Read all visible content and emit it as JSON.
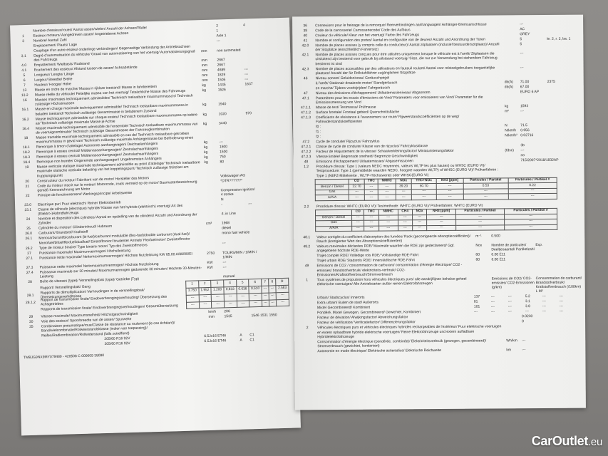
{
  "left_page": {
    "rows": [
      [
        "",
        "Nombre d'essieux/roues/ Aantal assen/wielen/ Anzahl der Achsen/Räder",
        "",
        "2",
        "4"
      ],
      [
        "1",
        "Essieux moteurs/ Aangedreven assen/ Angetriebene Achsen",
        "",
        "1",
        ""
      ],
      [
        "3",
        "Nombre/ Aantal/ Zahl",
        "",
        "Axle 1",
        ""
      ],
      [
        "",
        "Emplacement/ Plaats/ Lage",
        "",
        "---",
        ""
      ],
      [
        "",
        "Couplage d'un autre essieu/ onderlinge verbindingen/ Gegenseitige Verbindung der Antriebsachsen",
        "",
        "",
        ""
      ],
      [
        "3.1",
        "Degré d'automatisation du véhicule/ Graad van automatisering van het voertuig/ Automatisierungsgrad des Fahrzeugs",
        "mm",
        "non automated",
        ""
      ],
      [
        "4.0",
        "Empattement/ Wielbasis/ Radstand",
        "mm",
        "2667",
        ""
      ],
      [
        "4.1",
        "Ecartement des essieux/ Afstand tussen de assen/ Achsabstände",
        "mm",
        "2667",
        ""
      ],
      [
        "5",
        "Longueur/ Lengte/ Länge",
        "mm",
        "4689",
        "---"
      ],
      [
        "6",
        "Largeur/ Breedte/ Breite",
        "mm",
        "1829",
        "---"
      ],
      [
        "7",
        "Hauteur/ Hoogte/ Höhe",
        "mm",
        "1505",
        "---"
      ],
      [
        "13",
        "Masse en ordre de marche/ Massa in rijklare toestand/ Masse in fahrbereitem",
        "kg",
        "1435",
        "1637"
      ],
      [
        "13.2",
        "Masse réelle du véhicule/ Feitelijke massa van het voertuig/ Tatsächliche Masse des Fahrzeugs",
        "kg",
        "1526",
        ""
      ],
      [
        "16",
        "Masses maximales techniquement admissibles/ Technisch toelaatbare maximummassa's/ Technisch zulässige Höchstmassen",
        "",
        "",
        ""
      ],
      [
        "16.1",
        "Masse en charge maximale techniquement admissible/ Technisch toelaatbare maximummassa in beladen toestand/ Technisch zulässige Gesamtmasse in beladenem Zustand",
        "kg",
        "1940",
        ""
      ],
      [
        "16.2",
        "Masse techniquement admissible sur chaque essieu/ Technisch toelaatbare maximummassa op iedere as/ Technisch zulässige maximale Masse je Achse",
        "kg",
        "1020",
        "970"
      ],
      [
        "16.4",
        "Masse maximale techniquement admissible de l'ensemble/ Technisch toelaatbare maximummassa van de voertuigcombinatie/ Technisch zulässige Gesamtmasse der Fahrzeugkombination",
        "kg",
        "3440",
        ""
      ],
      [
        "18",
        "Masse tractable maximale techniquement admissible en cas de/ Technisch toelaatbare getrokken maximummassa in geval van/ Technisch zulässige maximale Anhängemasse bei Beförderung eines",
        "",
        "",
        ""
      ],
      [
        "18.1",
        "Remorque à timon d'attelage/ Autonome aanhangwagen/ Deichselanhängers",
        "kg",
        "---",
        ""
      ],
      [
        "18.2",
        "Remorque à essieu central/ Middenasaanhangwagen/ Zentralachsanhängers",
        "kg",
        "1500",
        ""
      ],
      [
        "18.3",
        "Remorque à essieu central/ Middenasaanhangwagen/ Zentralachsanhängers",
        "kg",
        "1500",
        ""
      ],
      [
        "18.4",
        "Remorque non freinée/ Ongeremde aanhangwagen/ Ungebremsten Anhängers",
        "kg",
        "750",
        ""
      ],
      [
        "19",
        "Masse verticale statique maximale techniquement admissible au point d'attelage/ Technisch toelaatbare maximale statische verticale belasting van het koppelingspunt/ Technisch zulässige Stützlast am Kupplungspunkt",
        "kg",
        "80",
        ""
      ],
      [
        "20",
        "Constructeur du moteur/ Fabrikant van de motor/ Hersteller des Motors",
        "",
        "Volkswagen AG",
        ""
      ],
      [
        "21",
        "Code du moteur inscrit sur le moteur/ Motorcode, zoals vermeld op de motor/ Baumusterbezeichnung gemäß Kennzeichnung am Motor",
        "",
        "*DTR??????*",
        ""
      ],
      [
        "22",
        "Principe de fonctionnement/ Werkingsprincipe/ Arbeitsweise",
        "",
        "Compression ignition/ 4 stroke",
        ""
      ],
      [
        "23.0",
        "Electrique pur/ Puur elektrisch/ Reiner Elektrobetrieb",
        "",
        "N",
        ""
      ],
      [
        "23.1",
        "Classe de véhicule (électrique) hybride/ Klasse van het hybride (elektrisch) voertuig/ Art des (Elektro-)Hybridfahrzeugs",
        "",
        "-",
        "---"
      ],
      [
        "24",
        "Nombre et disposition des cylindres/ Aantal en opstelling van de cilinders/ Anzahl und Anordnung der Zylinder",
        "",
        "4; in Line",
        ""
      ],
      [
        "25",
        "Cylindrée du moteur/ Cilinderinhoud/ Hubraum",
        "cm³",
        "1968",
        ""
      ],
      [
        "26.0",
        "Carburant/ Brandstof/ Kraftstoff",
        "",
        "diesel",
        ""
      ],
      [
        "26.1",
        "Monocarburant/bicarburant (bi-fuel)/carburant modulable (flex-fuel)/double carburant (dual-fuel)/ Monofuel/bifuel/flexfuel/dualfuel/ Einstoffmotor/ bivalenter Antrieb/ Flexfuelmotor/ Zweistoffmotor",
        "",
        "mono fuel vehicle",
        ""
      ],
      [
        "26.2",
        "Type de moteur binaire/ Type binaire motor/ Typ des Zweistoffmotors",
        "",
        "---",
        ""
      ],
      [
        "27",
        "Puissance maximale/ Maximumvermogen/ Höchstleistung",
        "",
        "",
        ""
      ],
      [
        "27.1",
        "Puissance nette maximale/ Nettomaximumvermogen/ Höchste Nutzleistung KW 85.00 A/88/99/EI",
        "2750",
        "TOURS/MIN / 1/MIN / 1/MIN",
        ""
      ],
      [
        "27.3",
        "Puissance nette maximale/ Nettomaximumvermogen/ Höchste Nutzleistung",
        "KW",
        "---",
        ""
      ],
      [
        "27.4",
        "Puissance maximale sur 30 minutes/ Maximumvermogen gedurende 30 minuten/ Höchste 30-Minuten-Leistung",
        "KW",
        "---",
        ""
      ],
      [
        "28",
        "Boîte de vitesses (type)/ Versnellingsbak (type)/ Getriebe (Typ)",
        "",
        "manual",
        ""
      ]
    ],
    "gearbox": {
      "rows_labels": [
        [
          "",
          "Rapport/ Versnellingsbak/ Gang"
        ],
        [
          "28.1",
          "Rapports de démultiplication/ Verhoudingen in de versnellingsbak/ Übersetzungsverhältnisse"
        ],
        [
          "28.1.2",
          "Rapport de transmission finale/ Eindoverbrengingsverhouding/ Übersetzung des Achsgetriebes"
        ],
        [
          "",
          "Rapports de transmission finale/ Eindoverbrengingsverhoudingen/ Gesamtübersetzung"
        ]
      ],
      "gears": [
        "1",
        "2",
        "3",
        "4",
        "5",
        "6",
        "7",
        "8",
        "R"
      ],
      "ratios": [
        "3.750",
        "1.952",
        "1.200",
        "0.833",
        "0.638",
        "0.510",
        "---",
        "---",
        "2.583"
      ],
      "final": [
        "---",
        "---",
        "---",
        "---",
        "---",
        "---",
        "---",
        "---",
        "---"
      ],
      "overall": [
        "---",
        "---",
        "---",
        "---",
        "---",
        "---",
        "---",
        "---",
        "---"
      ]
    },
    "rows2": [
      [
        "29",
        "Vitesse maximale/ Maximumsnelheid/ Höchstgeschwindigkeit",
        "km/h",
        "206",
        ""
      ],
      [
        "30",
        "Voie des essieux/ Spoorbreedte van de assen/ Spurweite",
        "mm",
        "1535",
        "1546  1531  1550"
      ],
      [
        "35",
        "Combinaison pneumatique/roue/Classe de résistance au roulement (le cas échéant)/ Band/wielcombinatie/Rolweerstandsklasse (indien van toepassing)/ Reifen/Radkombination/Rollwiderstand (falls zutreffend)",
        "",
        "",
        ""
      ]
    ],
    "tyres": [
      [
        "205/60 R16 92V",
        "6.5Jx16 ET46",
        "A",
        "C1"
      ],
      [
        "205/60 R16 92V",
        "6.5Jx16 ET46",
        "A",
        "C1"
      ]
    ],
    "vin_line": "TMBJG9NX9MY079489 - 420508 C 000009   38090"
  },
  "right_page": {
    "rows": [
      [
        "36",
        "Connexions pour le freinage de la remorque/ Remverbindingen aanhangwagen/ Anhänger-Bremsanschlüsse",
        "",
        "---",
        ""
      ],
      [
        "38",
        "Code de la carrosserie/ Carrosseriecode/ Code des Aufbaus",
        "",
        "AC",
        ""
      ],
      [
        "40",
        "Couleur du véhicule/ Kleur van het voertuig/ Farbe des Fahrzeugs",
        "",
        "GREY",
        ""
      ],
      [
        "41",
        "Nombre et configuration des portes/ Aantal en configuratie van de deuren/ Anzahl und Anordnung der Türen",
        "",
        "5",
        "le. 2, r. 2, ba. 1"
      ],
      [
        "42.0",
        "Nombre de places assises (y compris celle du conducteur)/ Aantal zitplaatsen (inclusief bestuurderszitplaats)/ Anzahl der Sitzplätze (einschließlich Fahrersitz)",
        "",
        "5",
        ""
      ],
      [
        "42.1",
        "Nombre de places assises conçues pour être utilisées uniquement lorsque le véhicule est à l'arrêt/ Zitplaatsen die uitsluitend zijn bestemd voor gebruik bij stilstaand voertuig/ Sitze, die nur zur Verwendung bei stehendem Fahrzeug bestimmt ist sind",
        "",
        "---",
        ""
      ],
      [
        "42.3",
        "Nombre de places accessibles par des utilisateurs en fauteuil roulant/ Aantal voor rolstoelgebruikers toegankelijke plaatsen/ Anzahl der für Rollstuhlfahrer zugänglichen Sitzplätze",
        "",
        "---",
        ""
      ],
      [
        "46",
        "Niveau sonore/ Geluidsniveau/ Geräuschpegel",
        "",
        "",
        ""
      ],
      [
        "",
        "à l'arrêt/ Stationair draaiende motor/ Standgeräusch",
        "db(A)",
        "71.00",
        "2375"
      ],
      [
        "",
        "en marche/ Tijdens voorbijrijden/ Fahrgeräusch",
        "db(A)",
        "67.00",
        ""
      ],
      [
        "47",
        "Niveau des émissions d'échappement/ Uitlaatemissieniveau/ Abgasnorm",
        "",
        "EURO 6 AP",
        ""
      ],
      [
        "47.1",
        "Paramètres pour les essais d'émissions de Vind/ Parameters voor emissietest van Vind/ Parameter für die Emissionsmessung von Vind",
        "",
        "",
        ""
      ],
      [
        "47.1.1",
        "Masse de test/ Testmassa/ Prüfmasse",
        "kg",
        "1593",
        ""
      ],
      [
        "47.1.2",
        "Surface frontale/ Frontaal gebied/ Querschnittsfläche",
        "m²",
        "---",
        ""
      ],
      [
        "47.1.3",
        "Coefficients de résistance à l'avancement sur route/ Rijweerstandscoëfficiënten op de weg/ Fahrwiderstandskoeffizienten",
        "",
        "",
        ""
      ],
      [
        "",
        "f0 :",
        "N",
        "71.5",
        ""
      ],
      [
        "",
        "f1 :",
        "N/km/h",
        "0.956",
        ""
      ],
      [
        "",
        "f2 :",
        "N/km/h²",
        "0.02716",
        ""
      ],
      [
        "47.2",
        "Cycle de conduite/ Rijcyclus/ Fahrzyklus",
        "",
        "",
        ""
      ],
      [
        "47.2.1",
        "Classe de cycle de conduite/ Klasse van de rijcyclus/ Fahrzyklusklasse",
        "",
        "3b",
        ""
      ],
      [
        "47.2.2",
        "Facteur de réajustement de la vitesse/ Schaalverkleiningsfactor/ Miniaturisierungsfaktor",
        "(fdsc)",
        "---",
        ""
      ],
      [
        "47.2.3",
        "Vitesse limitée/ Begrensde snelheid/ Begrenzte Geschwindigkeit",
        "",
        "no",
        ""
      ],
      [
        "48",
        "Emissions d'échappement/ Uitlaatemissies/ Abgasemissionen",
        "",
        "715/2007*2018/1832AP",
        ""
      ],
      [
        "1.2",
        "Procédure d'essai: Type 1 (valeurs NEDC moyennes, valeurs WLTP les plus hautes) ou WHSC (EURO VI)/ Testprocedure: Type 1 (gemiddelde waarden NEDC, hoogste waarden WLTP) of WHSC (EURO VI)/ Prüfverfahren : Type 1 (NEFZ-Mittelwerte , WLTP-Höchstwerte) oder WHSC(EURO VI)",
        "",
        "",
        ""
      ]
    ],
    "emissions_table_1": {
      "headers": [
        "",
        "CO",
        "THC",
        "NMHC",
        "NOx",
        "THC+NOx",
        "NH3 [ppm]",
        "Particules / Partikel",
        "Particules / Partikel #"
      ],
      "rows": [
        [
          "Benzin / Diesel",
          "22.70",
          "---",
          "---",
          "39.20",
          "50.70",
          "---",
          "0.53",
          "0.22"
        ],
        [
          "Gas",
          "---",
          "---",
          "---",
          "---",
          "---",
          "---",
          "---",
          "---"
        ],
        [
          "A/A/A",
          "---",
          "---",
          "---",
          "---",
          "---",
          "---",
          "---",
          "---"
        ]
      ]
    },
    "test2_row": [
      "2.2",
      "Procédure d'essai: WHTC (EURO VI)/ Testmethode: WHTC (EURO VI)/ Prüfverfahren: WHTC (EURO VI)"
    ],
    "emissions_table_2": {
      "headers": [
        "",
        "CO",
        "THC",
        "NMHC",
        "CH4",
        "NOx",
        "NH3 [ppm]",
        "Particules / Partikel",
        "Particules / Partikel #"
      ],
      "rows": [
        [
          "Benzin / Diesel",
          "---",
          "---",
          "---",
          "---",
          "---",
          "---",
          "---",
          "---"
        ],
        [
          "Gas",
          "---",
          "---",
          "---",
          "---",
          "---",
          "---",
          "---",
          "---"
        ],
        [
          "A/A/A",
          "---",
          "---",
          "---",
          "---",
          "---",
          "---",
          "---",
          "---"
        ]
      ]
    },
    "rows2": [
      [
        "48.1",
        "Valeur corrigée du coefficient d'absorption des fumées/ Rook (gecorrigeerde absorptiecoëfficiënt)/ Rauch (korrigierter Wert des Absorptionskoeffizienten)",
        "m⁻¹",
        "0.500",
        ""
      ],
      [
        "48.2",
        "Valeurs maximales déclarées RDE/ Maximale waarden die RDE zijn gedeclareerd/ Ggf. angegebene höchste RDE-Werte",
        "Nox",
        "Nombre de particules/ Deeltjesaantal/ Partikelzahl",
        "Exp."
      ],
      [
        "",
        "Trajet complet RDE/ Volledige rols RDE/ Vollständige RDE-Fahrt",
        "80",
        "6.00 E11",
        ""
      ],
      [
        "",
        "Trajet urbain RDE/ Stadsrols RDE/ Innerstädtische RDE-Fahrt",
        "80",
        "6.00 E11",
        ""
      ],
      [
        "49",
        "Emissions de CO2 / consommation de carburant/ consommation d'énergie électrique/ CO2 -emissies/ brandstofverbruik/ elektriciteits-verbruik/ CO2-Emissionen/Kraftstoffverbrauch/Stromverbrauch",
        "",
        "",
        ""
      ],
      [
        "1",
        "Tous systèmes de propulsion hors véhicules électriques purs/ alle aandrijflijnen behalve geheel elektrische voertuigen/ Alle Antriebsarten außer reinen Elektrofahrzeugen",
        "",
        "Emissions de CO2/ CO2-emissies/ CO2-Emissionen (g/km)",
        "Consommation de carburant/ Brandstofverbruik/ Kraftstoffverbrauch (/100km)  L  M³"
      ]
    ],
    "co2": [
      [
        "Urbain/ Stadscyclus/ Innerorts",
        "137",
        "---",
        "---",
        "5.2",
        "---",
        "---"
      ],
      [
        "Extra urbain/ Buiten de stad/ Außerorts",
        "81",
        "---",
        "---",
        "3.1",
        "---",
        "---"
      ],
      [
        "Mixte/ Gecombineerd/ Kombiniert",
        "101",
        "---",
        "---",
        "3.8",
        "---",
        "---"
      ],
      [
        "Pondéré, Mixte/ Gewogen, Gecombineerd/ Gewichtet, Kombiniert",
        "---",
        "---",
        "---",
        "---",
        "---",
        "---"
      ]
    ],
    "rows3": [
      [
        "",
        "Facteur de déviation/ Afwijkingsfactor/ Abweichungsfaktor",
        "",
        "0.0230",
        ""
      ],
      [
        "",
        "Facteur de vérification/ Verificatiefactor/ Differenzierungsfaktor",
        "",
        "0",
        ""
      ],
      [
        "2",
        "Véhicules électriques purs et véhicules électriques hybrides rechargeables de l'extérieur/ Puur elektrische voertuigen en extern oplaadbare hybride elektrische voertuigen/ Reine Elektrofahrzeuge und extern aufladbare Hybridelektrofahrzeuge",
        "",
        "",
        ""
      ],
      [
        "",
        "Consommation d'énergie électrique (pondérée, combinée)/ Elektriciteitsverbruik (gewogen, gecombineerd)/ Stromverbrauch (gewichtet, kombiniert)",
        "Wh/km",
        "---",
        ""
      ],
      [
        "",
        "Autonomie en mode électrique/ Elektrische actieradius/ Elektrische Reichweite",
        "km",
        "---",
        ""
      ]
    ]
  },
  "watermark": {
    "brand": "CarOutlet",
    "tld": ".eu"
  }
}
